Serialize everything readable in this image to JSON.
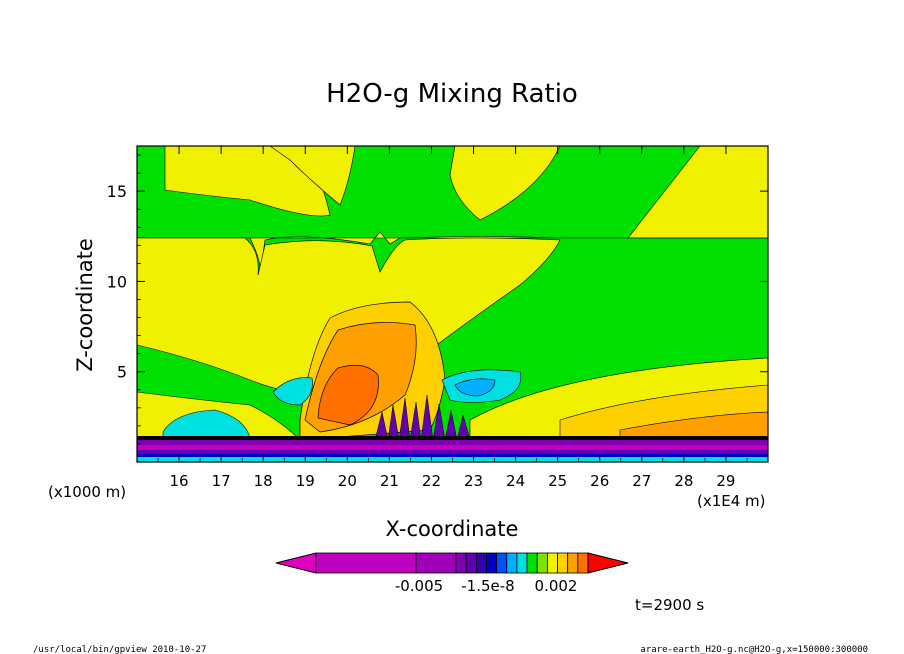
{
  "chart_data": {
    "type": "heatmap",
    "title": "H2O-g Mixing Ratio",
    "xlabel": "X-coordinate",
    "ylabel": "Z-coordinate",
    "x_unit_left": "(x1000 m)",
    "x_unit_right": "(x1E4 m)",
    "x_ticks": [
      16,
      17,
      18,
      19,
      20,
      21,
      22,
      23,
      24,
      25,
      26,
      27,
      28,
      29
    ],
    "y_ticks": [
      5,
      10,
      15
    ],
    "xlim": [
      15.0,
      30.0
    ],
    "ylim": [
      0,
      17.5
    ],
    "colorbar": {
      "tick_labels": [
        "-0.005",
        "-1.5e-8",
        "0.002"
      ],
      "colors": [
        "#e000c0",
        "#c000c0",
        "#a000b8",
        "#8000b0",
        "#6000b0",
        "#3000b0",
        "#0000c8",
        "#0050ff",
        "#00b0ff",
        "#00e0e0",
        "#00e000",
        "#80e000",
        "#f0f000",
        "#ffd000",
        "#ffa000",
        "#ff7000",
        "#ff0000"
      ]
    },
    "time_label": "t=2900 s"
  },
  "footer": {
    "left": "/usr/local/bin/gpview   2010-10-27",
    "right": "arare-earth_H2O-g.nc@H2O-g,x=150000:300000"
  }
}
